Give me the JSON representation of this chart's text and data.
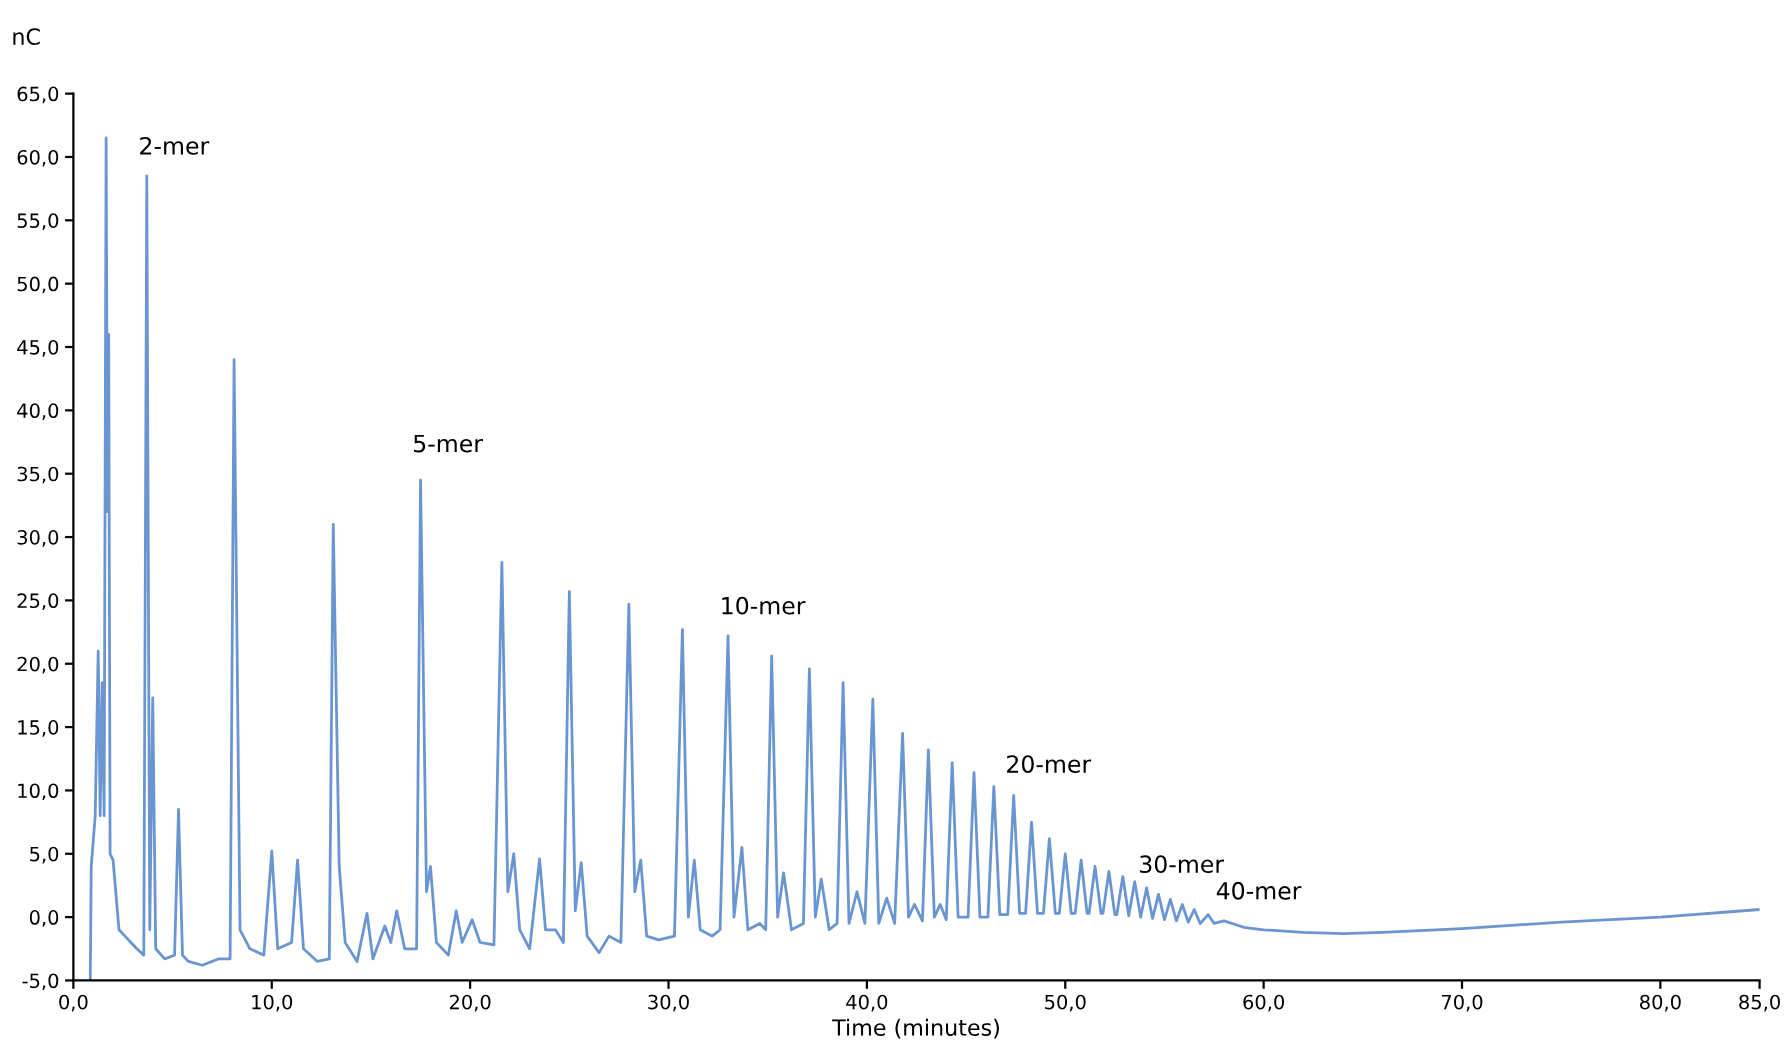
{
  "chart_data": {
    "type": "line",
    "xlabel": "Time (minutes)",
    "ylabel": "nC",
    "xlim": [
      0,
      85
    ],
    "ylim": [
      -5,
      65
    ],
    "xticks": [
      {
        "value": 0,
        "label": "0,0"
      },
      {
        "value": 10,
        "label": "10,0"
      },
      {
        "value": 20,
        "label": "20,0"
      },
      {
        "value": 30,
        "label": "30,0"
      },
      {
        "value": 40,
        "label": "40,0"
      },
      {
        "value": 50,
        "label": "50,0"
      },
      {
        "value": 60,
        "label": "60,0"
      },
      {
        "value": 70,
        "label": "70,0"
      },
      {
        "value": 80,
        "label": "80,0"
      },
      {
        "value": 85,
        "label": "85,0"
      }
    ],
    "yticks": [
      {
        "value": -5,
        "label": "-5,0"
      },
      {
        "value": 0,
        "label": "0,0"
      },
      {
        "value": 5,
        "label": "5,0"
      },
      {
        "value": 10,
        "label": "10,0"
      },
      {
        "value": 15,
        "label": "15,0"
      },
      {
        "value": 20,
        "label": "20,0"
      },
      {
        "value": 25,
        "label": "25,0"
      },
      {
        "value": 30,
        "label": "30,0"
      },
      {
        "value": 35,
        "label": "35,0"
      },
      {
        "value": 40,
        "label": "40,0"
      },
      {
        "value": 45,
        "label": "45,0"
      },
      {
        "value": 50,
        "label": "50,0"
      },
      {
        "value": 55,
        "label": "55,0"
      },
      {
        "value": 60,
        "label": "60,0"
      },
      {
        "value": 65,
        "label": "65,0"
      }
    ],
    "grid": false,
    "marker": "none",
    "line_style": "solid",
    "annotations": [
      {
        "text": "2-mer",
        "x": 3.7,
        "y": 58.5
      },
      {
        "text": "5-mer",
        "x": 17.5,
        "y": 35
      },
      {
        "text": "10-mer",
        "x": 33.0,
        "y": 22.2
      },
      {
        "text": "20-mer",
        "x": 47.4,
        "y": 9.7
      },
      {
        "text": "30-mer",
        "x": 54.1,
        "y": 1.8
      },
      {
        "text": "40-mer",
        "x": 58.0,
        "y": -0.3
      }
    ],
    "series": [
      {
        "color": "#6a95d0",
        "x": [
          0.85,
          0.9,
          1.1,
          1.25,
          1.35,
          1.45,
          1.55,
          1.65,
          1.72,
          1.78,
          1.85,
          2.0,
          2.3,
          2.6,
          2.9,
          3.2,
          3.55,
          3.7,
          3.85,
          4.0,
          4.15,
          4.6,
          5.1,
          5.3,
          5.5,
          5.8,
          6.5,
          7.3,
          7.9,
          8.1,
          8.4,
          8.9,
          9.6,
          10.0,
          10.3,
          11.0,
          11.3,
          11.6,
          12.3,
          12.9,
          13.1,
          13.4,
          13.7,
          14.3,
          14.8,
          15.1,
          15.7,
          16.0,
          16.3,
          16.7,
          17.3,
          17.5,
          17.8,
          18.0,
          18.3,
          18.9,
          19.3,
          19.6,
          20.1,
          20.5,
          21.2,
          21.6,
          21.9,
          22.2,
          22.5,
          23.0,
          23.5,
          23.8,
          24.3,
          24.7,
          25.0,
          25.3,
          25.6,
          25.9,
          26.5,
          27.0,
          27.6,
          28.0,
          28.3,
          28.6,
          28.9,
          29.5,
          30.3,
          30.7,
          31.0,
          31.3,
          31.6,
          32.2,
          32.6,
          33.0,
          33.3,
          33.7,
          34.0,
          34.6,
          34.9,
          35.2,
          35.5,
          35.8,
          36.2,
          36.8,
          37.1,
          37.4,
          37.7,
          38.1,
          38.5,
          38.8,
          39.1,
          39.5,
          39.9,
          40.3,
          40.6,
          41.0,
          41.4,
          41.8,
          42.1,
          42.4,
          42.8,
          43.1,
          43.4,
          43.7,
          44.0,
          44.3,
          44.6,
          45.1,
          45.4,
          45.7,
          46.1,
          46.4,
          46.7,
          47.1,
          47.4,
          47.7,
          48.0,
          48.3,
          48.6,
          48.9,
          49.2,
          49.5,
          49.7,
          50.0,
          50.3,
          50.5,
          50.8,
          51.1,
          51.2,
          51.5,
          51.8,
          51.9,
          52.2,
          52.5,
          52.6,
          52.9,
          53.2,
          53.5,
          53.8,
          54.1,
          54.4,
          54.7,
          55.0,
          55.3,
          55.6,
          55.9,
          56.2,
          56.5,
          56.8,
          57.2,
          57.5,
          58.0,
          59.0,
          60.0,
          62.0,
          64.0,
          66.0,
          70.0,
          75.0,
          80.0,
          85.0
        ],
        "values": [
          -5,
          4,
          8,
          21,
          8,
          18.5,
          8,
          61.5,
          32,
          46,
          5,
          4.5,
          -1,
          -1.5,
          -2,
          -2.5,
          -3,
          58.5,
          -1,
          17.3,
          -2.5,
          -3.3,
          -3,
          8.5,
          -3,
          -3.5,
          -3.8,
          -3.3,
          -3.3,
          44,
          -1,
          -2.5,
          -3,
          5.2,
          -2.5,
          -2,
          4.5,
          -2.5,
          -3.5,
          -3.3,
          31,
          4,
          -2,
          -3.5,
          0.3,
          -3.3,
          -0.7,
          -2,
          0.5,
          -2.5,
          -2.5,
          34.5,
          2,
          4,
          -2,
          -3,
          0.5,
          -2,
          -0.2,
          -2,
          -2.2,
          28,
          2,
          5,
          -1,
          -2.5,
          4.6,
          -1,
          -1,
          -2,
          25.7,
          0.5,
          4.3,
          -1.5,
          -2.8,
          -1.5,
          -2,
          24.7,
          2,
          4.5,
          -1.5,
          -1.8,
          -1.5,
          22.7,
          0,
          4.5,
          -1,
          -1.5,
          -1,
          22.2,
          0,
          5.5,
          -1,
          -0.5,
          -1,
          20.6,
          0,
          3.5,
          -1,
          -0.5,
          19.6,
          0,
          3,
          -1,
          -0.5,
          18.5,
          -0.5,
          2,
          -0.5,
          17.2,
          -0.5,
          1.5,
          -0.5,
          14.5,
          0,
          1,
          -0.3,
          13.2,
          0,
          1,
          -0.2,
          12.2,
          0,
          0,
          11.4,
          0,
          0,
          10.3,
          0.2,
          0.2,
          9.6,
          0.3,
          0.3,
          7.5,
          0.3,
          0.3,
          6.2,
          0.3,
          0.3,
          5,
          0.3,
          0.3,
          4.5,
          0.3,
          0.3,
          4,
          0.3,
          0.3,
          3.6,
          0.2,
          0.2,
          3.2,
          0.1,
          2.8,
          0,
          2.3,
          -0.1,
          1.8,
          -0.2,
          1.4,
          -0.3,
          1,
          -0.4,
          0.6,
          -0.5,
          0.2,
          -0.5,
          -0.3,
          -0.8,
          -1,
          -1.2,
          -1.3,
          -1.2,
          -0.9,
          -0.4,
          0,
          0.6
        ]
      }
    ]
  }
}
